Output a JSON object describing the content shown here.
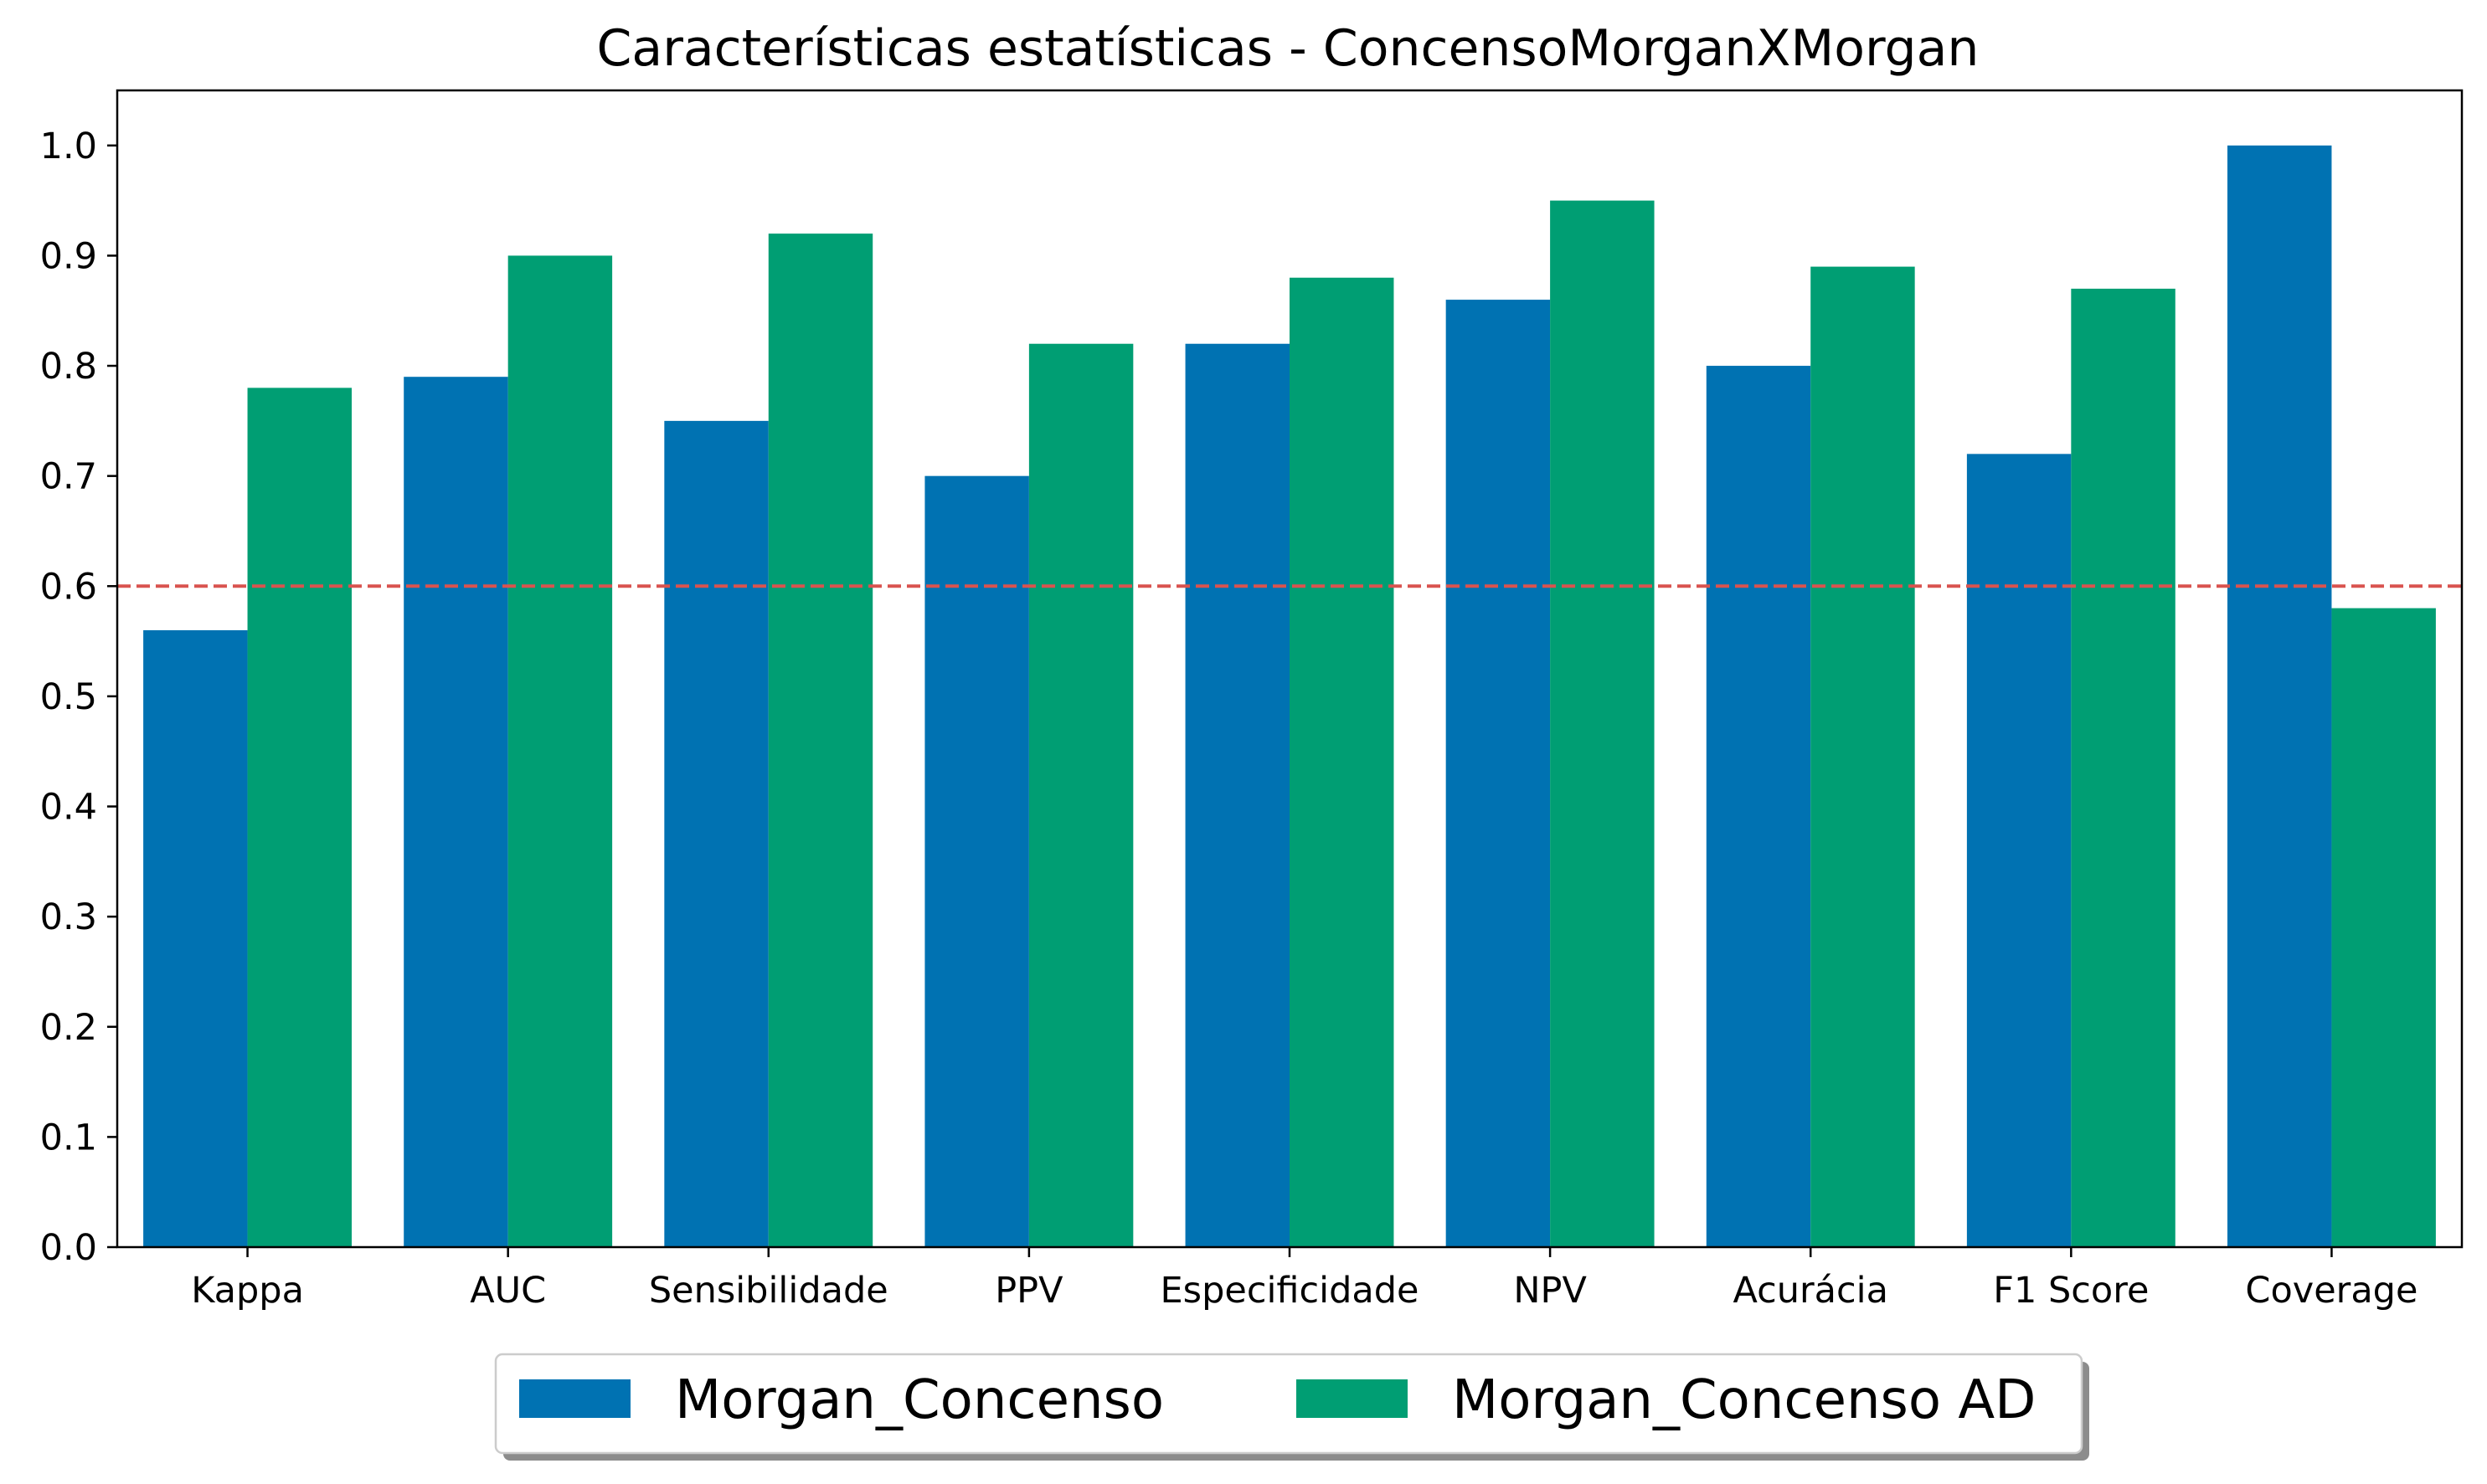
{
  "chart_data": {
    "type": "bar",
    "title": "Características estatísticas - ConcensoMorganXMorgan",
    "xlabel": "",
    "ylabel": "",
    "categories": [
      "Kappa",
      "AUC",
      "Sensibilidade",
      "PPV",
      "Especificidade",
      "NPV",
      "Acurácia",
      "F1 Score",
      "Coverage"
    ],
    "series": [
      {
        "name": "Morgan_Concenso",
        "color": "#0072b2",
        "values": [
          0.56,
          0.79,
          0.75,
          0.7,
          0.82,
          0.86,
          0.8,
          0.72,
          1.0
        ]
      },
      {
        "name": "Morgan_Concenso AD",
        "color": "#009e73",
        "values": [
          0.78,
          0.9,
          0.92,
          0.82,
          0.88,
          0.95,
          0.89,
          0.87,
          0.58
        ]
      }
    ],
    "ylim": [
      0,
      1.05
    ],
    "yticks": [
      "0.0",
      "0.1",
      "0.2",
      "0.3",
      "0.4",
      "0.5",
      "0.6",
      "0.7",
      "0.8",
      "0.9",
      "1.0"
    ],
    "reference_line": {
      "value": 0.6,
      "color": "#d9534f",
      "style": "dashed"
    },
    "grid": false,
    "legend_position": "bottom-center"
  }
}
